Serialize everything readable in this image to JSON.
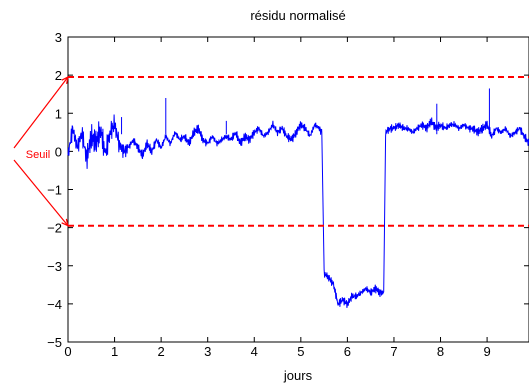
{
  "chart_data": {
    "type": "line",
    "title": "résidu normalisé",
    "xlabel": "jours",
    "ylabel": "",
    "xlim": [
      0,
      9.9
    ],
    "ylim": [
      -5,
      3
    ],
    "xticks": [
      0,
      1,
      2,
      3,
      4,
      5,
      6,
      7,
      8,
      9
    ],
    "yticks": [
      -5,
      -4,
      -3,
      -2,
      -1,
      0,
      1,
      2,
      3
    ],
    "grid": false,
    "colors": {
      "series": "#0000ff",
      "threshold": "#ff0000",
      "annotation": "#ff0000"
    },
    "series": [
      {
        "style": "solid",
        "x": [
          0,
          0.1,
          0.2,
          0.3,
          0.4,
          0.5,
          0.6,
          0.7,
          0.8,
          0.9,
          1.0,
          1.1,
          1.2,
          1.3,
          1.4,
          1.5,
          1.6,
          1.7,
          1.8,
          1.9,
          2.0,
          2.1,
          2.2,
          2.3,
          2.4,
          2.5,
          2.6,
          2.7,
          2.8,
          2.9,
          3.0,
          3.1,
          3.2,
          3.3,
          3.4,
          3.5,
          3.6,
          3.7,
          3.8,
          3.9,
          4.0,
          4.1,
          4.2,
          4.3,
          4.4,
          4.5,
          4.6,
          4.7,
          4.8,
          4.9,
          5.0,
          5.1,
          5.2,
          5.3,
          5.4,
          5.45,
          5.5,
          5.6,
          5.7,
          5.8,
          5.9,
          6.0,
          6.1,
          6.2,
          6.3,
          6.4,
          6.5,
          6.6,
          6.7,
          6.78,
          6.82,
          6.9,
          7.0,
          7.1,
          7.2,
          7.3,
          7.4,
          7.5,
          7.6,
          7.7,
          7.8,
          7.9,
          8.0,
          8.1,
          8.2,
          8.3,
          8.4,
          8.5,
          8.6,
          8.7,
          8.8,
          8.9,
          9.0,
          9.1,
          9.2,
          9.3,
          9.4,
          9.5,
          9.6,
          9.7,
          9.8,
          9.9
        ],
        "y": [
          -0.1,
          0.6,
          0.1,
          0.5,
          -0.2,
          0.4,
          0.2,
          0.6,
          -0.1,
          0.5,
          0.7,
          0.2,
          0.0,
          0.1,
          0.3,
          0.1,
          -0.1,
          0.2,
          0.0,
          0.3,
          0.1,
          0.4,
          0.2,
          0.5,
          0.3,
          0.4,
          0.2,
          0.5,
          0.6,
          0.3,
          0.2,
          0.4,
          0.2,
          0.3,
          0.4,
          0.3,
          0.5,
          0.2,
          0.4,
          0.3,
          0.5,
          0.6,
          0.4,
          0.5,
          0.7,
          0.5,
          0.6,
          0.4,
          0.3,
          0.5,
          0.7,
          0.6,
          0.4,
          0.7,
          0.6,
          0.5,
          -3.2,
          -3.3,
          -3.5,
          -4.0,
          -3.9,
          -4.0,
          -3.8,
          -3.8,
          -3.7,
          -3.6,
          -3.7,
          -3.6,
          -3.7,
          -3.7,
          0.5,
          0.6,
          0.6,
          0.7,
          0.6,
          0.6,
          0.5,
          0.6,
          0.7,
          0.6,
          0.8,
          0.6,
          0.7,
          0.6,
          0.7,
          0.7,
          0.6,
          0.7,
          0.6,
          0.6,
          0.5,
          0.6,
          0.7,
          0.4,
          0.6,
          0.5,
          0.6,
          0.4,
          0.5,
          0.6,
          0.4,
          0.2
        ],
        "spikes": [
          {
            "x": 1.15,
            "y": 0.9
          },
          {
            "x": 2.1,
            "y": 1.4
          },
          {
            "x": 3.4,
            "y": 0.8
          },
          {
            "x": 7.92,
            "y": 1.25
          },
          {
            "x": 9.05,
            "y": 1.65
          }
        ]
      },
      {
        "style": "dashed",
        "x": [
          0,
          9.9
        ],
        "y": [
          1.95,
          1.95
        ]
      },
      {
        "style": "dashed",
        "x": [
          0,
          9.9
        ],
        "y": [
          -1.95,
          -1.95
        ]
      }
    ],
    "annotations": [
      {
        "text": "Seuil",
        "targets": [
          {
            "x": 0,
            "y": 1.95
          },
          {
            "x": 0,
            "y": -1.95
          }
        ]
      }
    ]
  }
}
